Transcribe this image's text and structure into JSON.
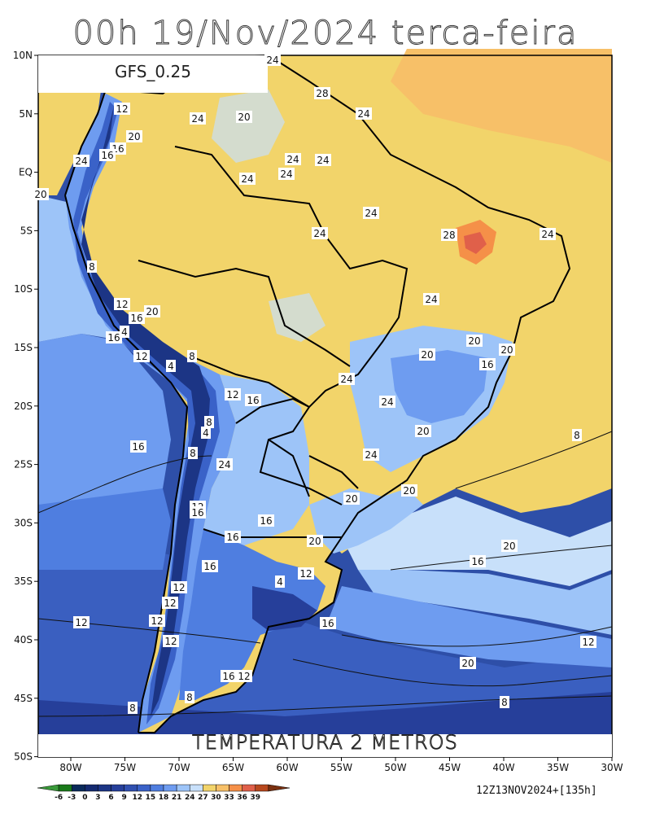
{
  "title": "00h 19/Nov/2024 terca-feira",
  "model_label": "GFS_0.25",
  "variable_label": "TEMPERATURA 2 METROS",
  "run_info": "12Z13NOV2024+[135h]",
  "lat_ticks": [
    "10N",
    "5N",
    "EQ",
    "5S",
    "10S",
    "15S",
    "20S",
    "25S",
    "30S",
    "35S",
    "40S",
    "45S",
    "50S"
  ],
  "lon_ticks": [
    "80W",
    "75W",
    "70W",
    "65W",
    "60W",
    "55W",
    "50W",
    "45W",
    "40W",
    "35W",
    "30W"
  ],
  "colorbar": {
    "labels": [
      "-6",
      "-3",
      "0",
      "3",
      "6",
      "9",
      "12",
      "15",
      "18",
      "21",
      "24",
      "27",
      "30",
      "33",
      "36",
      "39"
    ],
    "colors": [
      "#3a9a3a",
      "#1a7a1a",
      "#0a2a5a",
      "#142a70",
      "#1c3585",
      "#263f9a",
      "#3050b0",
      "#3a62c8",
      "#4f7ee0",
      "#6e9cf0",
      "#9dc4f8",
      "#c8e0fa",
      "#f2d46a",
      "#f7c068",
      "#f59048",
      "#e0604a",
      "#b8481e",
      "#7a3010"
    ]
  },
  "contour_labels": [
    {
      "text": "24"
    },
    {
      "text": "28"
    },
    {
      "text": "24"
    },
    {
      "text": "12"
    },
    {
      "text": "20"
    },
    {
      "text": "24"
    },
    {
      "text": "20"
    },
    {
      "text": "16"
    },
    {
      "text": "16"
    },
    {
      "text": "24"
    },
    {
      "text": "24"
    },
    {
      "text": "24"
    },
    {
      "text": "24"
    },
    {
      "text": "24"
    },
    {
      "text": "20"
    },
    {
      "text": "24"
    },
    {
      "text": "24"
    },
    {
      "text": "28"
    },
    {
      "text": "24"
    },
    {
      "text": "8"
    },
    {
      "text": "12"
    },
    {
      "text": "16"
    },
    {
      "text": "20"
    },
    {
      "text": "24"
    },
    {
      "text": "16"
    },
    {
      "text": "4"
    },
    {
      "text": "12"
    },
    {
      "text": "4"
    },
    {
      "text": "8"
    },
    {
      "text": "20"
    },
    {
      "text": "20"
    },
    {
      "text": "20"
    },
    {
      "text": "16"
    },
    {
      "text": "24"
    },
    {
      "text": "12"
    },
    {
      "text": "16"
    },
    {
      "text": "24"
    },
    {
      "text": "8"
    },
    {
      "text": "4"
    },
    {
      "text": "20"
    },
    {
      "text": "16"
    },
    {
      "text": "8"
    },
    {
      "text": "24"
    },
    {
      "text": "24"
    },
    {
      "text": "8"
    },
    {
      "text": "20"
    },
    {
      "text": "20"
    },
    {
      "text": "12"
    },
    {
      "text": "16"
    },
    {
      "text": "16"
    },
    {
      "text": "16"
    },
    {
      "text": "20"
    },
    {
      "text": "16"
    },
    {
      "text": "20"
    },
    {
      "text": "16"
    },
    {
      "text": "12"
    },
    {
      "text": "4"
    },
    {
      "text": "12"
    },
    {
      "text": "12"
    },
    {
      "text": "12"
    },
    {
      "text": "12"
    },
    {
      "text": "16"
    },
    {
      "text": "12"
    },
    {
      "text": "12"
    },
    {
      "text": "20"
    },
    {
      "text": "16"
    },
    {
      "text": "12"
    },
    {
      "text": "8"
    },
    {
      "text": "8"
    },
    {
      "text": "8"
    }
  ]
}
